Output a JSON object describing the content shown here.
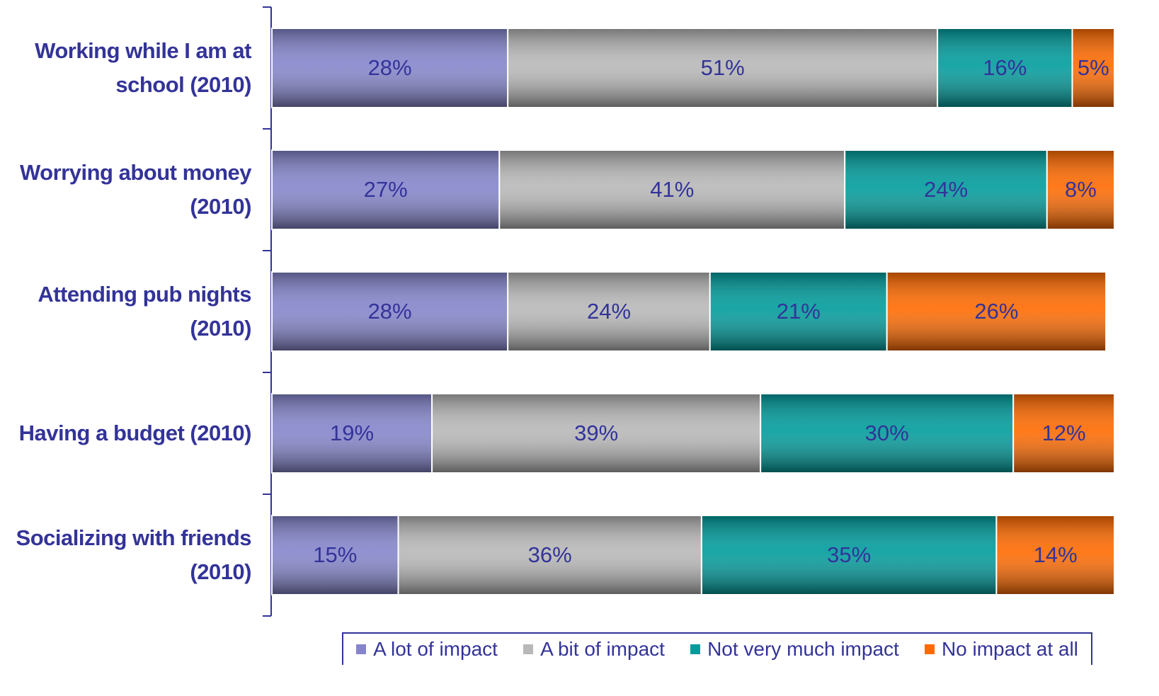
{
  "chart_data": {
    "type": "stacked-bar-horizontal",
    "categories": [
      "Working while I am at school (2010)",
      "Worrying about money (2010)",
      "Attending pub nights (2010)",
      "Having a budget (2010)",
      "Socializing with friends (2010)"
    ],
    "series": [
      {
        "name": "A lot of impact",
        "color": "#8585cc",
        "values": [
          28,
          27,
          28,
          19,
          15
        ],
        "value_labels": [
          "28%",
          "27%",
          "28%",
          "19%",
          "15%"
        ]
      },
      {
        "name": "A bit of impact",
        "color": "#b8b8b8",
        "values": [
          51,
          41,
          24,
          39,
          36
        ],
        "value_labels": [
          "51%",
          "41%",
          "24%",
          "39%",
          "36%"
        ]
      },
      {
        "name": "Not very much impact",
        "color": "#009c9c",
        "values": [
          16,
          24,
          21,
          30,
          35
        ],
        "value_labels": [
          "16%",
          "24%",
          "21%",
          "30%",
          "35%"
        ]
      },
      {
        "name": "No impact at all",
        "color": "#ff6a00",
        "values": [
          5,
          8,
          26,
          12,
          14
        ],
        "value_labels": [
          "5%",
          "8%",
          "26%",
          "12%",
          "14%"
        ]
      }
    ],
    "xlim": [
      0,
      100
    ],
    "legend": "bottom"
  }
}
